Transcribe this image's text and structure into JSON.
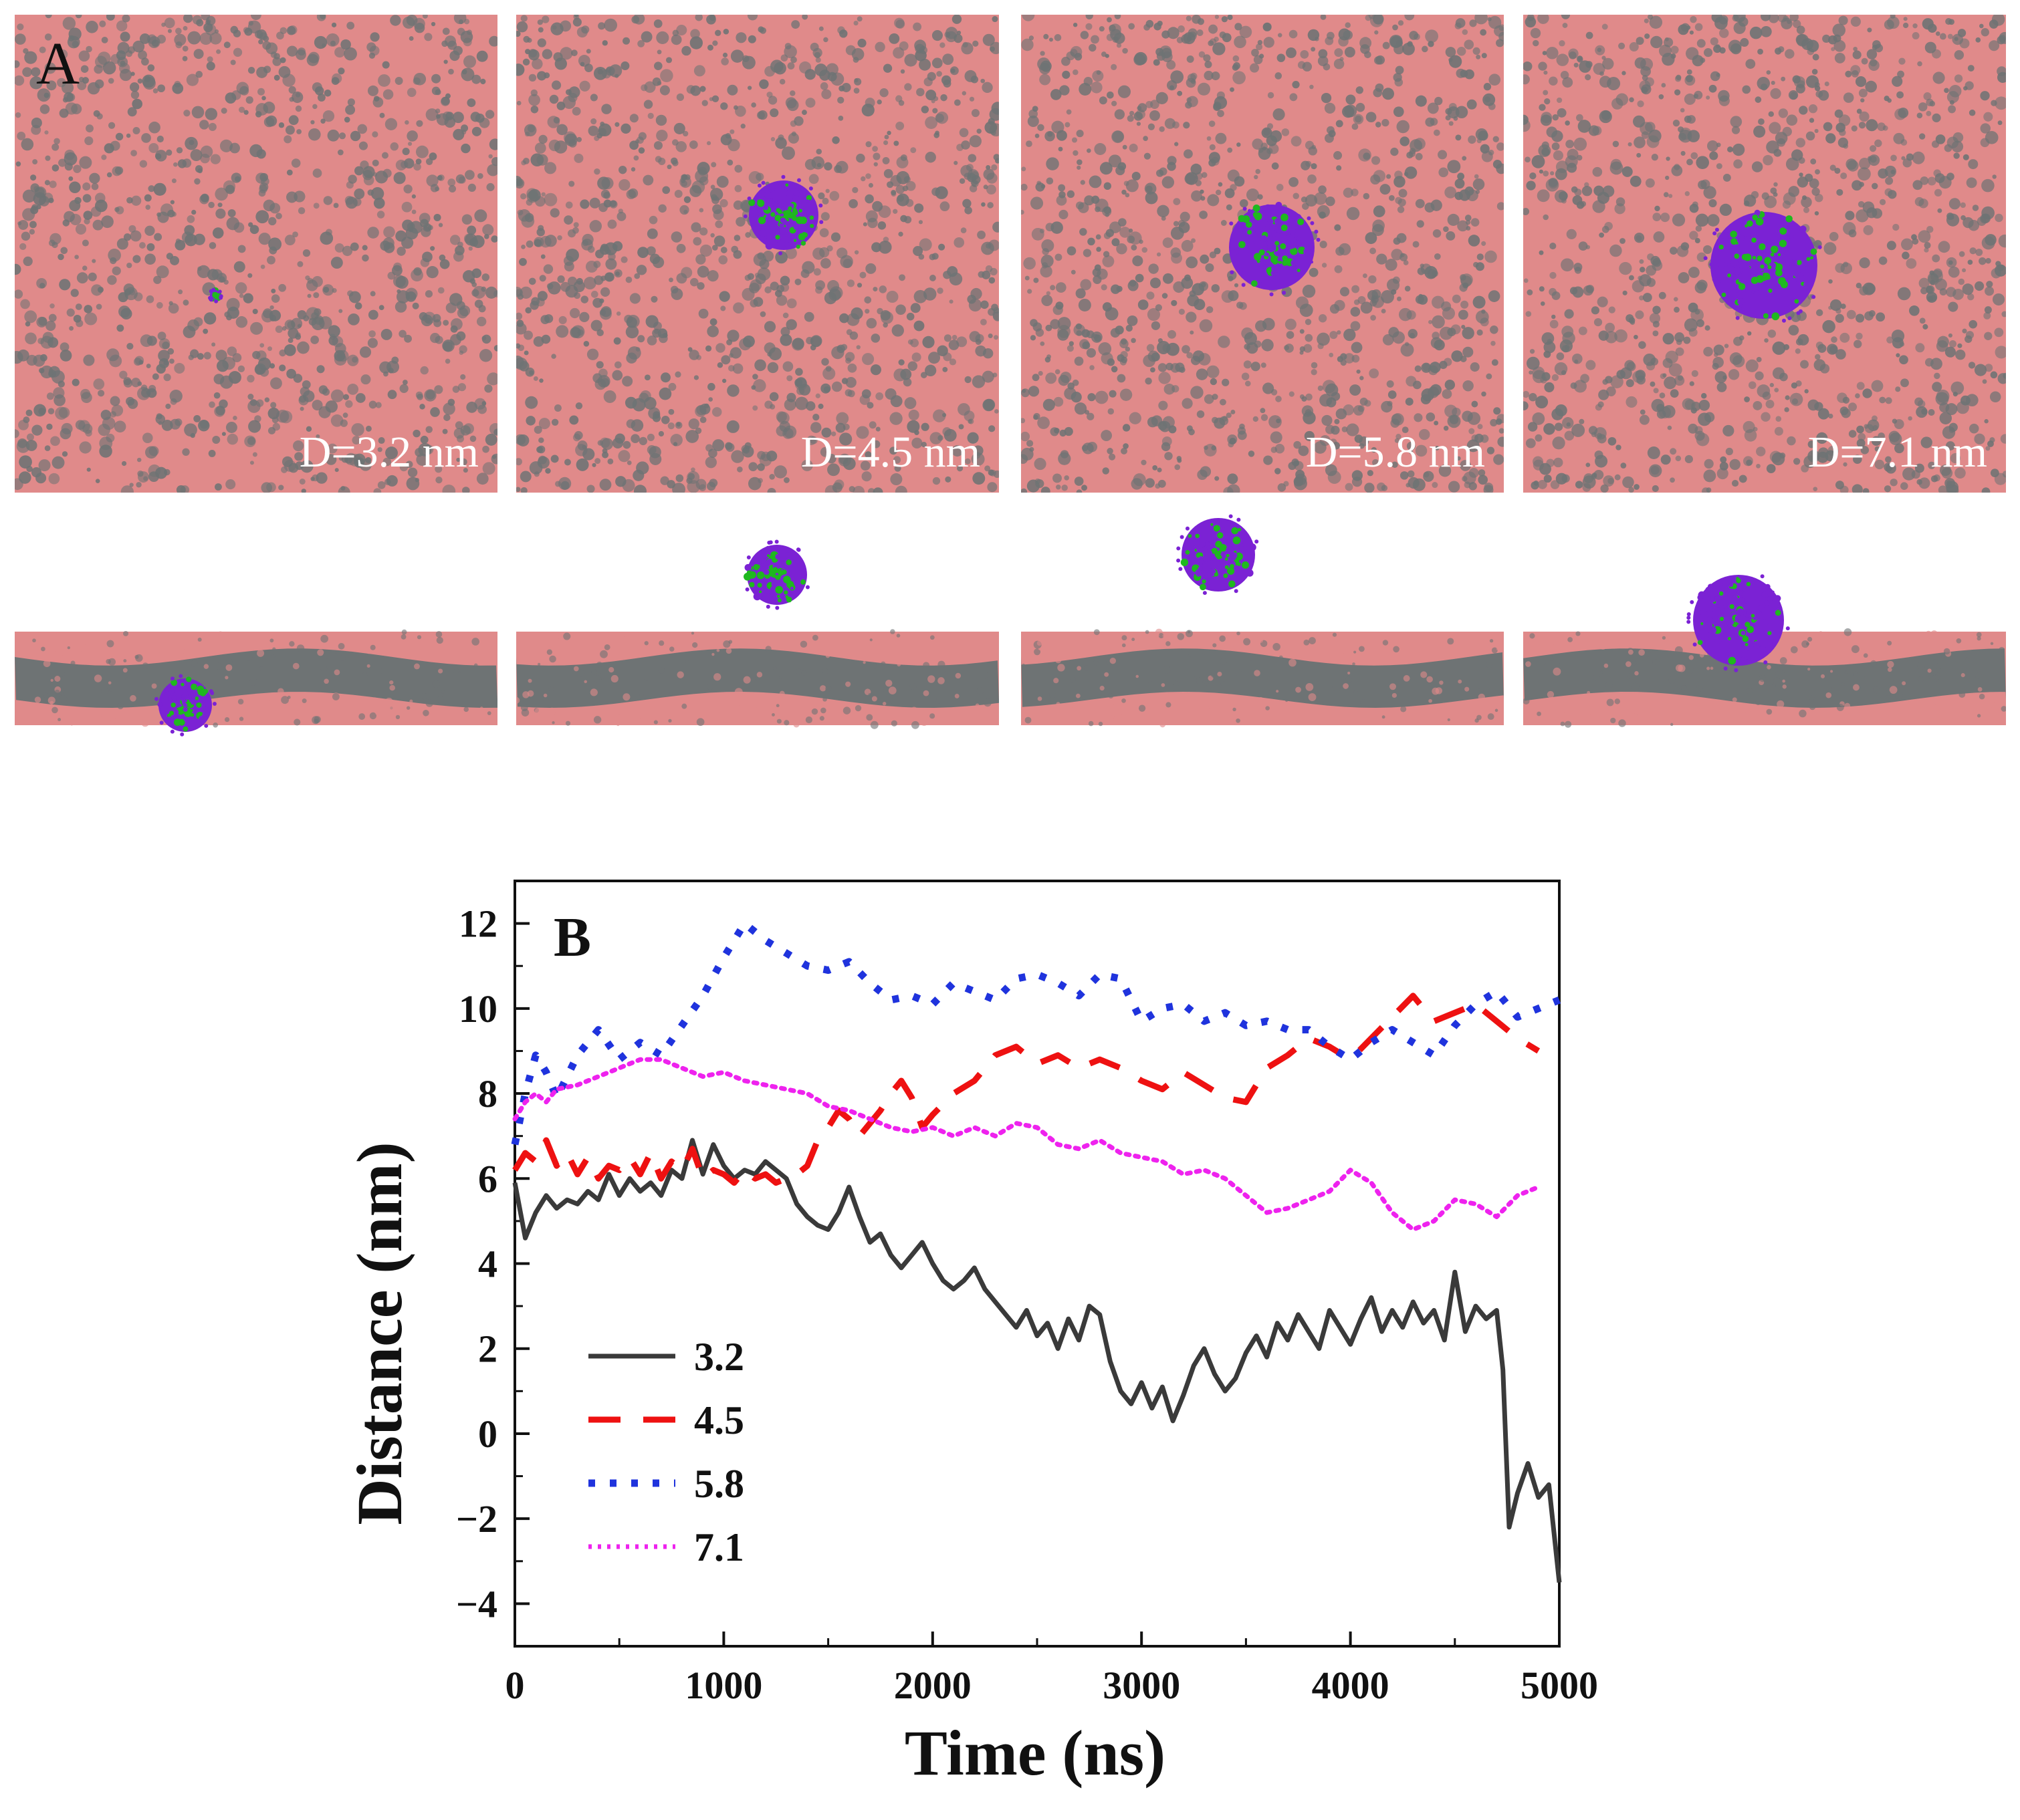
{
  "panel_a": {
    "letter": "A",
    "snapshots": [
      {
        "label": "D=3.2 nm",
        "np_color_outer": "#7b22d4",
        "np_color_inner": "#1fb81f"
      },
      {
        "label": "D=4.5 nm",
        "np_color_outer": "#7b22d4",
        "np_color_inner": "#1fb81f"
      },
      {
        "label": "D=5.8 nm",
        "np_color_outer": "#7b22d4",
        "np_color_inner": "#1fb81f"
      },
      {
        "label": "D=7.1 nm",
        "np_color_outer": "#7b22d4",
        "np_color_inner": "#1fb81f"
      }
    ],
    "membrane_head_color": "#e08a8a",
    "membrane_tail_color": "#6e7374"
  },
  "chart_data": {
    "type": "line",
    "panel_letter": "B",
    "xlabel": "Time (ns)",
    "ylabel": "Distance (nm)",
    "xlim": [
      0,
      5000
    ],
    "ylim": [
      -5,
      13
    ],
    "xticks": [
      "0",
      "1000",
      "2000",
      "3000",
      "4000",
      "5000"
    ],
    "yticks": [
      "−4",
      "−2",
      "0",
      "2",
      "4",
      "6",
      "8",
      "10",
      "12"
    ],
    "legend_position": "lower-left",
    "grid": false,
    "series": [
      {
        "name": "3.2",
        "color": "#3a3a3a",
        "style": "solid",
        "x": [
          0,
          50,
          100,
          150,
          200,
          250,
          300,
          350,
          400,
          450,
          500,
          550,
          600,
          650,
          700,
          750,
          800,
          850,
          900,
          950,
          1000,
          1050,
          1100,
          1150,
          1200,
          1250,
          1300,
          1350,
          1400,
          1450,
          1500,
          1550,
          1600,
          1650,
          1700,
          1750,
          1800,
          1850,
          1900,
          1950,
          2000,
          2050,
          2100,
          2150,
          2200,
          2250,
          2300,
          2350,
          2400,
          2450,
          2500,
          2550,
          2600,
          2650,
          2700,
          2750,
          2800,
          2850,
          2900,
          2950,
          3000,
          3050,
          3100,
          3150,
          3200,
          3250,
          3300,
          3350,
          3400,
          3450,
          3500,
          3550,
          3600,
          3650,
          3700,
          3750,
          3800,
          3850,
          3900,
          3950,
          4000,
          4050,
          4100,
          4150,
          4200,
          4250,
          4300,
          4350,
          4400,
          4450,
          4500,
          4550,
          4600,
          4650,
          4700,
          4730,
          4760,
          4800,
          4850,
          4900,
          4950,
          5000
        ],
        "y": [
          5.9,
          4.6,
          5.2,
          5.6,
          5.3,
          5.5,
          5.4,
          5.7,
          5.5,
          6.1,
          5.6,
          6.0,
          5.7,
          5.9,
          5.6,
          6.2,
          6.0,
          6.9,
          6.1,
          6.8,
          6.3,
          6.0,
          6.2,
          6.1,
          6.4,
          6.2,
          6.0,
          5.4,
          5.1,
          4.9,
          4.8,
          5.2,
          5.8,
          5.1,
          4.5,
          4.7,
          4.2,
          3.9,
          4.2,
          4.5,
          4.0,
          3.6,
          3.4,
          3.6,
          3.9,
          3.4,
          3.1,
          2.8,
          2.5,
          2.9,
          2.3,
          2.6,
          2.0,
          2.7,
          2.2,
          3.0,
          2.8,
          1.7,
          1.0,
          0.7,
          1.2,
          0.6,
          1.1,
          0.3,
          0.9,
          1.6,
          2.0,
          1.4,
          1.0,
          1.3,
          1.9,
          2.3,
          1.8,
          2.6,
          2.2,
          2.8,
          2.4,
          2.0,
          2.9,
          2.5,
          2.1,
          2.7,
          3.2,
          2.4,
          2.9,
          2.5,
          3.1,
          2.6,
          2.9,
          2.2,
          3.8,
          2.4,
          3.0,
          2.7,
          2.9,
          1.5,
          -2.2,
          -1.4,
          -0.7,
          -1.5,
          -1.2,
          -3.5
        ]
      },
      {
        "name": "4.5",
        "color": "#ee1111",
        "style": "dashed",
        "x": [
          0,
          50,
          100,
          150,
          200,
          250,
          300,
          350,
          400,
          450,
          500,
          550,
          600,
          650,
          700,
          750,
          800,
          850,
          900,
          950,
          1000,
          1050,
          1100,
          1150,
          1200,
          1250,
          1300,
          1350,
          1400,
          1450,
          1500,
          1550,
          1600,
          1650,
          1700,
          1750,
          1800,
          1850,
          1900,
          1950,
          2000,
          2100,
          2200,
          2300,
          2400,
          2500,
          2600,
          2700,
          2800,
          2900,
          3000,
          3100,
          3200,
          3300,
          3400,
          3500,
          3600,
          3700,
          3800,
          3900,
          4000,
          4100,
          4200,
          4300,
          4400,
          4500,
          4600,
          4700,
          4800,
          4900
        ],
        "y": [
          6.2,
          6.6,
          6.4,
          6.9,
          6.3,
          6.6,
          6.1,
          6.5,
          6.0,
          6.3,
          6.2,
          6.5,
          6.1,
          6.6,
          6.0,
          6.4,
          6.2,
          6.7,
          6.0,
          6.2,
          6.1,
          5.9,
          6.2,
          6.0,
          6.1,
          5.9,
          6.0,
          6.1,
          6.3,
          6.9,
          7.2,
          7.6,
          7.4,
          7.0,
          7.3,
          7.6,
          8.0,
          8.3,
          7.9,
          7.2,
          7.5,
          8.0,
          8.3,
          8.9,
          9.1,
          8.7,
          8.9,
          8.6,
          8.8,
          8.6,
          8.3,
          8.1,
          8.5,
          8.2,
          7.9,
          7.8,
          8.6,
          8.9,
          9.3,
          9.1,
          8.8,
          9.3,
          9.8,
          10.3,
          9.7,
          9.9,
          10.1,
          9.7,
          9.3,
          9.0
        ]
      },
      {
        "name": "5.8",
        "color": "#1f33dd",
        "style": "dotted-dash",
        "x": [
          0,
          50,
          100,
          150,
          200,
          300,
          400,
          500,
          600,
          700,
          800,
          900,
          1000,
          1100,
          1200,
          1300,
          1400,
          1500,
          1600,
          1700,
          1800,
          1900,
          2000,
          2100,
          2200,
          2300,
          2400,
          2500,
          2600,
          2700,
          2800,
          2900,
          3000,
          3100,
          3200,
          3300,
          3400,
          3500,
          3600,
          3700,
          3800,
          3900,
          4000,
          4100,
          4200,
          4300,
          4400,
          4500,
          4600,
          4700,
          4800,
          4900,
          5000
        ],
        "y": [
          6.8,
          8.0,
          8.9,
          8.5,
          7.9,
          8.9,
          9.5,
          8.8,
          9.2,
          8.9,
          9.6,
          10.3,
          11.2,
          12.0,
          11.6,
          11.3,
          11.0,
          10.9,
          11.1,
          10.6,
          10.2,
          10.3,
          10.1,
          10.6,
          10.4,
          10.2,
          10.7,
          10.8,
          10.6,
          10.3,
          10.8,
          10.7,
          9.7,
          10.0,
          10.1,
          9.7,
          9.9,
          9.6,
          9.7,
          9.5,
          9.5,
          9.1,
          8.8,
          9.2,
          9.5,
          9.2,
          8.9,
          9.6,
          10.1,
          10.4,
          9.8,
          10.0,
          10.2
        ]
      },
      {
        "name": "7.1",
        "color": "#ee22ee",
        "style": "dotted",
        "x": [
          0,
          50,
          100,
          150,
          200,
          300,
          400,
          500,
          600,
          700,
          800,
          900,
          1000,
          1100,
          1200,
          1300,
          1400,
          1500,
          1600,
          1700,
          1800,
          1900,
          2000,
          2100,
          2200,
          2300,
          2400,
          2500,
          2600,
          2700,
          2800,
          2900,
          3000,
          3100,
          3200,
          3300,
          3400,
          3500,
          3600,
          3700,
          3800,
          3900,
          4000,
          4100,
          4200,
          4300,
          4400,
          4500,
          4600,
          4700,
          4800,
          4900
        ],
        "y": [
          7.4,
          7.8,
          8.0,
          7.8,
          8.1,
          8.2,
          8.4,
          8.6,
          8.8,
          8.8,
          8.6,
          8.4,
          8.5,
          8.3,
          8.2,
          8.1,
          8.0,
          7.7,
          7.6,
          7.4,
          7.2,
          7.1,
          7.2,
          7.0,
          7.2,
          7.0,
          7.3,
          7.2,
          6.8,
          6.7,
          6.9,
          6.6,
          6.5,
          6.4,
          6.1,
          6.2,
          6.0,
          5.6,
          5.2,
          5.3,
          5.5,
          5.7,
          6.2,
          5.9,
          5.2,
          4.8,
          5.0,
          5.5,
          5.4,
          5.1,
          5.6,
          5.8
        ]
      }
    ]
  }
}
